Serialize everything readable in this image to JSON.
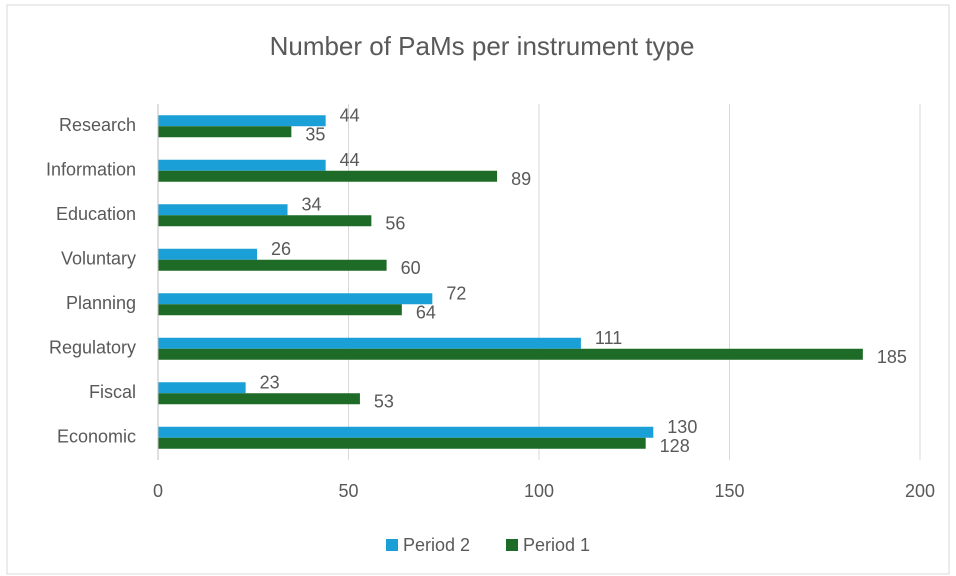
{
  "chart_data": {
    "type": "hbar",
    "title": "Number of PaMs per instrument type",
    "categories": [
      "Research",
      "Information",
      "Education",
      "Voluntary",
      "Planning",
      "Regulatory",
      "Fiscal",
      "Economic"
    ],
    "series": [
      {
        "name": "Period 2",
        "color": "#1a9fd6",
        "values": [
          44,
          44,
          34,
          26,
          72,
          111,
          23,
          130
        ]
      },
      {
        "name": "Period 1",
        "color": "#1d6b26",
        "values": [
          35,
          89,
          56,
          60,
          64,
          185,
          53,
          128
        ]
      }
    ],
    "xlim": [
      0,
      200
    ],
    "xticks": [
      0,
      50,
      100,
      150,
      200
    ],
    "grid": true,
    "legend": "bottom"
  }
}
